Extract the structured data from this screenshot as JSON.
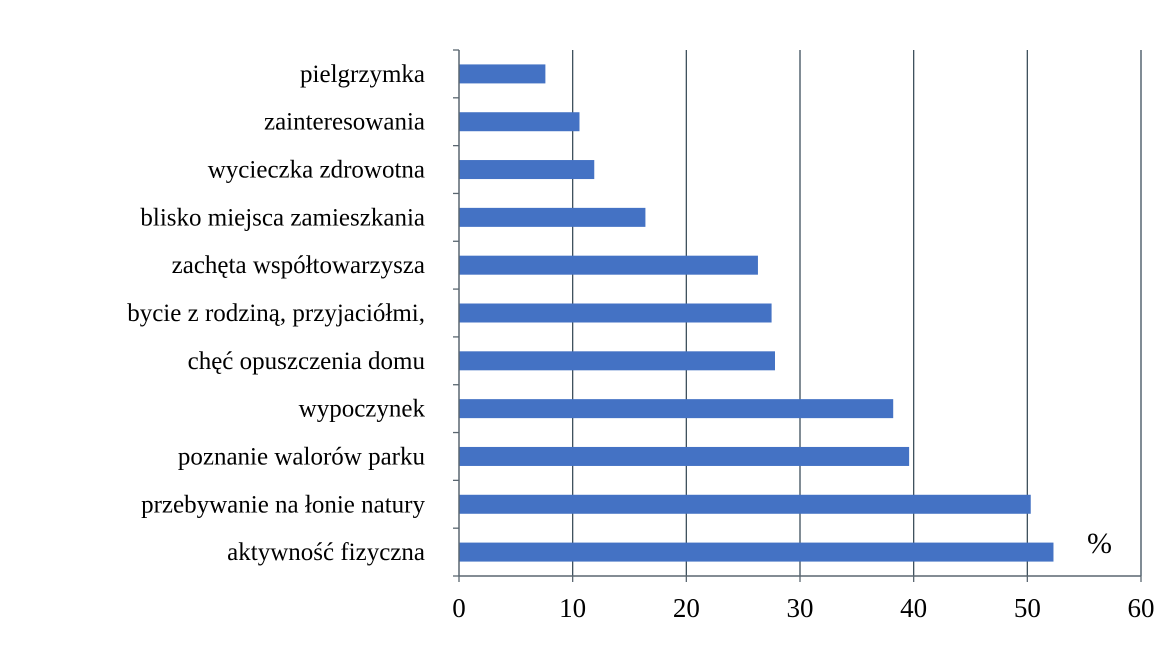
{
  "chart_data": {
    "type": "bar",
    "orientation": "horizontal",
    "title": "",
    "xlabel": "",
    "ylabel": "",
    "unit_annotation": "%",
    "categories": [
      "pielgrzymka",
      "zainteresowania",
      "wycieczka zdrowotna",
      "blisko miejsca zamieszkania",
      "zachęta współtowarzysza",
      "bycie z rodziną, przyjaciółmi,",
      "chęć opuszczenia domu",
      "wypoczynek",
      "poznanie walorów parku",
      "przebywanie na łonie natury",
      "aktywność fizyczna"
    ],
    "values": [
      7.6,
      10.6,
      11.9,
      16.4,
      26.3,
      27.5,
      27.8,
      38.2,
      39.6,
      50.3,
      52.3
    ],
    "xlim": [
      0,
      60
    ],
    "xticks": [
      "0",
      "10",
      "20",
      "30",
      "40",
      "50",
      "60"
    ],
    "grid": "vertical",
    "legend": "none",
    "colors": {
      "bar": "#4472C4",
      "grid": "#3d4f5c",
      "axis": "#5a6670"
    }
  }
}
